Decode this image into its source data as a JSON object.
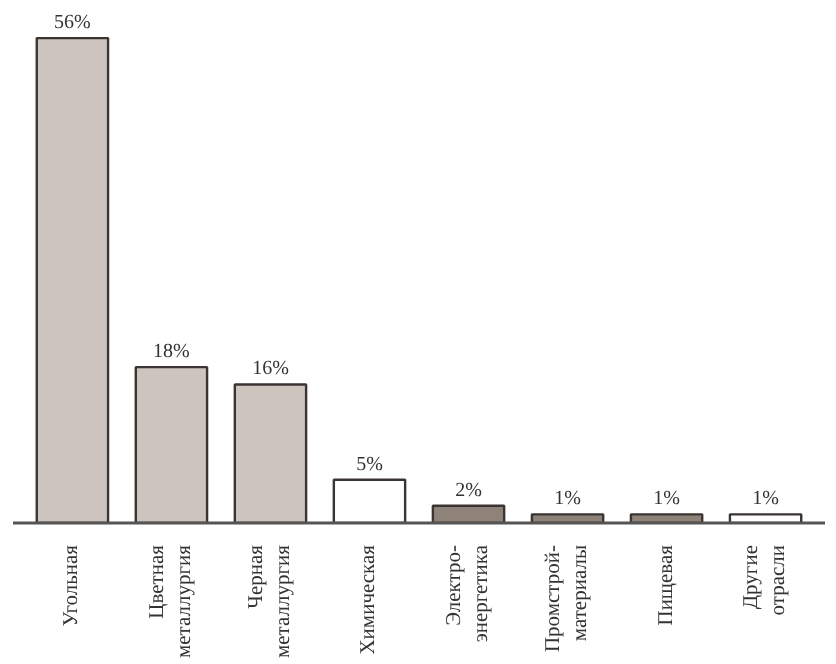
{
  "chart_data": {
    "type": "bar",
    "categories": [
      "Угольная",
      "Цветная\nметаллургия",
      "Черная\nметаллургия",
      "Химическая",
      "Электро-\nэнергетика",
      "Промстрой-\nматериалы",
      "Пищевая",
      "Другие\nотрасли"
    ],
    "values": [
      56,
      18,
      16,
      5,
      2,
      1,
      1,
      1
    ],
    "colors": [
      "#cdc5bd",
      "#cdc5bd",
      "#cdc5bd",
      "#ffffff",
      "#8f8279",
      "#8f8279",
      "#8f8279",
      "#ffffff"
    ],
    "value_labels": [
      "56%",
      "18%",
      "16%",
      "5%",
      "2%",
      "1%",
      "1%",
      "1%"
    ],
    "grid": false
  }
}
